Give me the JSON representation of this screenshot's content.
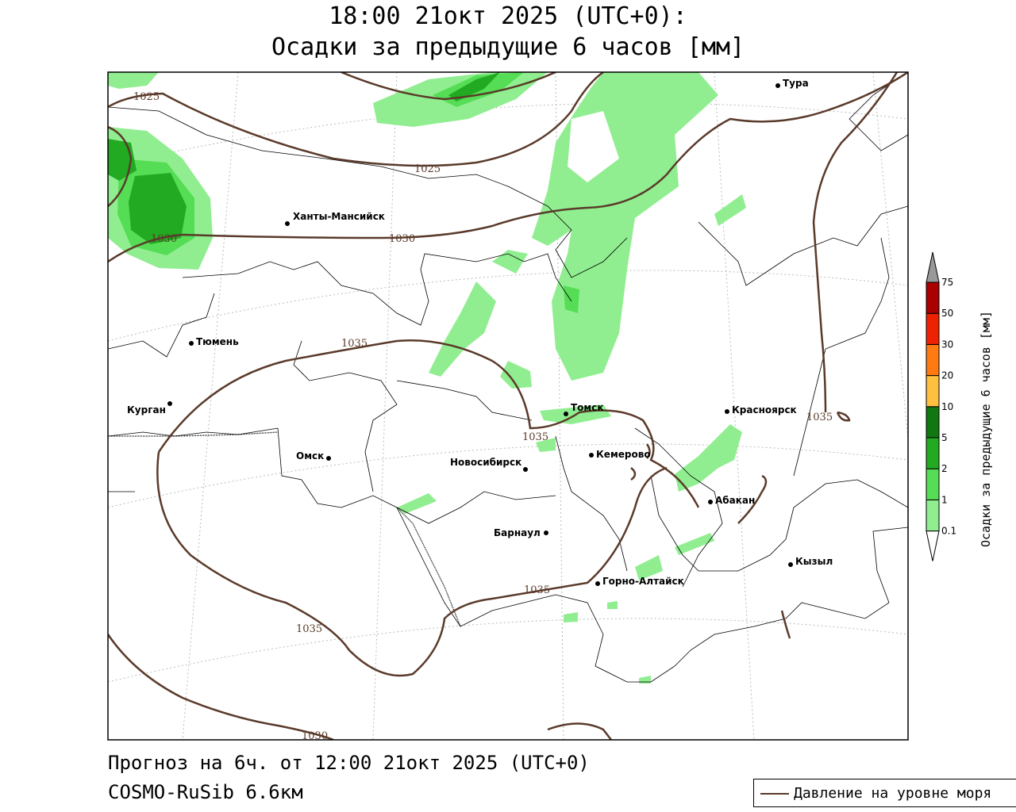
{
  "title": {
    "line1": "18:00 21окт 2025 (UTC+0):",
    "line2": "Осадки за предыдущие 6 часов [мм]"
  },
  "footer": {
    "forecast": "Прогноз на 6ч. от 12:00 21окт 2025 (UTC+0)",
    "model": "COSMO-RuSib 6.6км"
  },
  "legend": {
    "pressure_label": "Давление на уровне моря",
    "pressure_color": "#5a3a2a"
  },
  "colorbar": {
    "title": "Осадки за предыдущие 6 часов [мм]",
    "levels": [
      "0.1",
      "1",
      "2",
      "5",
      "10",
      "20",
      "30",
      "50",
      "75"
    ],
    "colors": [
      "#ffffff",
      "#90ee90",
      "#55dd55",
      "#22aa22",
      "#117711",
      "#ffc040",
      "#ff7a10",
      "#ee2200",
      "#aa0000",
      "#999999"
    ]
  },
  "cities": [
    {
      "name": "Тура"
    },
    {
      "name": "Ханты-Мансийск"
    },
    {
      "name": "Тюмень"
    },
    {
      "name": "Курган"
    },
    {
      "name": "Омск"
    },
    {
      "name": "Томск"
    },
    {
      "name": "Красноярск"
    },
    {
      "name": "Кемерово"
    },
    {
      "name": "Новосибирск"
    },
    {
      "name": "Абакан"
    },
    {
      "name": "Барнаул"
    },
    {
      "name": "Кызыл"
    },
    {
      "name": "Горно-Алтайск"
    }
  ],
  "isobar_labels": [
    "1025",
    "1025",
    "1030",
    "1030",
    "1035",
    "1035",
    "1035",
    "1035",
    "1035",
    "1030"
  ]
}
